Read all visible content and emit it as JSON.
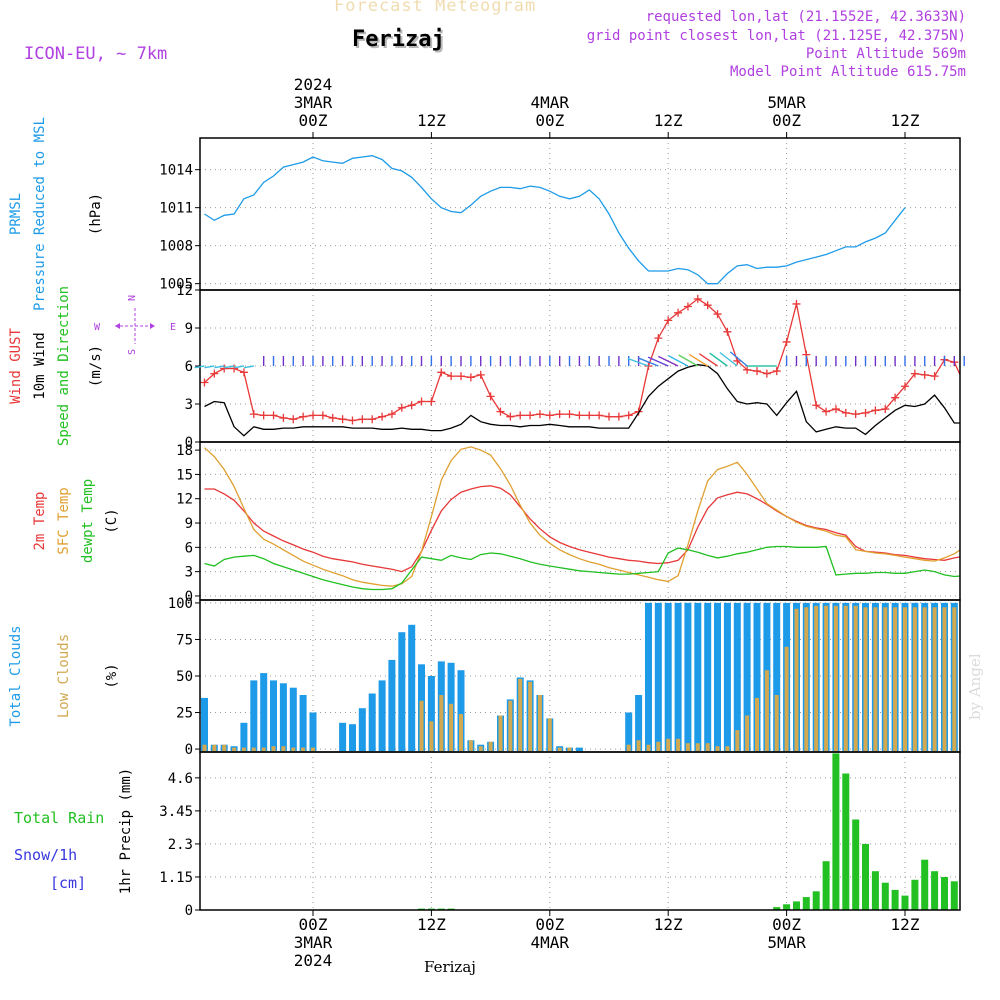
{
  "header": {
    "title": "Forecast Meteogram",
    "location": "Ferizaj",
    "model": "ICON-EU, ~ 7km",
    "requested": "requested lon,lat (21.1552E, 42.3633N)",
    "grid": "grid point closest lon,lat (21.125E, 42.375N)",
    "altitude": "Point Altitude 569m",
    "model_altitude": "Model Point Altitude 615.75m",
    "watermark": "by Angel",
    "footer_location": "Ferizaj"
  },
  "time_axis": {
    "top_labels": [
      {
        "t": 0,
        "lines": [
          "2024",
          "3MAR",
          "00Z"
        ]
      },
      {
        "t": 12,
        "lines": [
          "12Z"
        ]
      },
      {
        "t": 24,
        "lines": [
          "4MAR",
          "00Z"
        ]
      },
      {
        "t": 36,
        "lines": [
          "12Z"
        ]
      },
      {
        "t": 48,
        "lines": [
          "5MAR",
          "00Z"
        ]
      },
      {
        "t": 60,
        "lines": [
          "12Z"
        ]
      }
    ],
    "bottom_labels": [
      {
        "t": 0,
        "lines": [
          "00Z",
          "3MAR",
          "2024"
        ]
      },
      {
        "t": 12,
        "lines": [
          "12Z"
        ]
      },
      {
        "t": 24,
        "lines": [
          "00Z",
          "4MAR"
        ]
      },
      {
        "t": 36,
        "lines": [
          "12Z"
        ]
      },
      {
        "t": 48,
        "lines": [
          "00Z",
          "5MAR"
        ]
      },
      {
        "t": 60,
        "lines": [
          "12Z"
        ]
      }
    ]
  },
  "colors": {
    "pressure": "#1e9be8",
    "gust": "#e83838",
    "wind": "#000000",
    "temp2m": "#e83838",
    "sfc": "#e0a030",
    "dewpt": "#22c022",
    "total_clouds": "#1e9be8",
    "low_clouds": "#d2a850",
    "rain": "#22c022",
    "snow": "#3838e0",
    "violet": "#b040e0",
    "grid": "#9a9a9a"
  },
  "chart_data": [
    {
      "type": "line",
      "panel": "pressure",
      "title": "PRMSL Pressure Reduced to MSL",
      "ylabel_lines": [
        "PRMSL",
        "Pressure Reduced to MSL"
      ],
      "unit": "(hPa)",
      "ylim": [
        1004.5,
        1016.5
      ],
      "yticks": [
        1005,
        1008,
        1011,
        1014
      ],
      "x_start": -11,
      "x_step": 1,
      "series": [
        {
          "name": "PRMSL",
          "color": "#1e9be8",
          "values": [
            1010.5,
            1010.0,
            1010.4,
            1010.5,
            1011.7,
            1012.0,
            1013.0,
            1013.5,
            1014.2,
            1014.4,
            1014.6,
            1015.0,
            1014.7,
            1014.6,
            1014.5,
            1014.9,
            1015.0,
            1015.1,
            1014.8,
            1014.1,
            1013.9,
            1013.4,
            1012.6,
            1011.7,
            1011.0,
            1010.7,
            1010.6,
            1011.2,
            1011.9,
            1012.3,
            1012.6,
            1012.6,
            1012.5,
            1012.7,
            1012.6,
            1012.3,
            1011.9,
            1011.7,
            1011.9,
            1012.4,
            1011.7,
            1010.5,
            1009.0,
            1007.8,
            1006.8,
            1006.0,
            1006.0,
            1006.0,
            1006.2,
            1006.1,
            1005.7,
            1005.0,
            1005.0,
            1005.8,
            1006.4,
            1006.5,
            1006.2,
            1006.3,
            1006.3,
            1006.4,
            1006.7,
            1006.9,
            1007.1,
            1007.3,
            1007.6,
            1007.9,
            1007.9,
            1008.3,
            1008.6,
            1009.0,
            1010.0,
            1011.0
          ]
        }
      ]
    },
    {
      "type": "line",
      "panel": "wind",
      "title": "Wind GUST / 10m Wind Speed and Direction",
      "ylabel_lines": [
        "Wind GUST",
        "10m Wind",
        "Speed and Direction"
      ],
      "unit": "(m/s)",
      "ylim": [
        0,
        12
      ],
      "yticks": [
        0,
        3,
        6,
        9,
        12
      ],
      "compass": {
        "n": "N",
        "s": "S",
        "e": "E",
        "w": "W"
      },
      "x_start": -11,
      "x_step": 1,
      "series": [
        {
          "name": "Wind GUST",
          "color": "#e83838",
          "marker": "+",
          "values": [
            4.7,
            5.4,
            5.8,
            5.8,
            5.5,
            2.2,
            2.1,
            2.1,
            1.9,
            1.8,
            2.0,
            2.1,
            2.1,
            1.9,
            1.8,
            1.7,
            1.8,
            1.8,
            2.0,
            2.2,
            2.7,
            2.9,
            3.2,
            3.2,
            5.5,
            5.2,
            5.2,
            5.1,
            5.3,
            3.6,
            2.4,
            2.0,
            2.1,
            2.1,
            2.2,
            2.1,
            2.2,
            2.2,
            2.1,
            2.1,
            2.1,
            2.0,
            2.0,
            2.1,
            2.4,
            6.0,
            8.2,
            9.6,
            10.2,
            10.7,
            11.3,
            10.8,
            10.1,
            8.7,
            6.4,
            5.7,
            5.6,
            5.4,
            5.6,
            7.9,
            10.9,
            6.9,
            2.9,
            2.4,
            2.6,
            2.3,
            2.2,
            2.3,
            2.5,
            2.6,
            3.5,
            4.4,
            5.4,
            5.3,
            5.2,
            6.5,
            6.3,
            4.6,
            2.9
          ]
        },
        {
          "name": "10m Wind",
          "color": "#000000",
          "values": [
            2.8,
            3.2,
            3.1,
            1.2,
            0.5,
            1.2,
            1.0,
            1.0,
            1.1,
            1.1,
            1.2,
            1.2,
            1.2,
            1.2,
            1.2,
            1.1,
            1.1,
            1.1,
            1.0,
            1.0,
            1.1,
            1.0,
            1.0,
            0.9,
            0.9,
            1.1,
            1.4,
            2.1,
            1.6,
            1.4,
            1.3,
            1.3,
            1.2,
            1.3,
            1.3,
            1.4,
            1.3,
            1.2,
            1.2,
            1.2,
            1.1,
            1.1,
            1.1,
            1.1,
            2.3,
            3.6,
            4.4,
            5.0,
            5.6,
            5.9,
            6.1,
            6.0,
            5.4,
            4.2,
            3.2,
            3.0,
            3.1,
            3.0,
            2.1,
            3.1,
            4.0,
            1.6,
            0.8,
            1.0,
            1.2,
            1.1,
            1.1,
            0.6,
            1.3,
            1.9,
            2.5,
            2.9,
            2.8,
            3.0,
            3.7,
            2.7,
            1.5,
            1.5
          ]
        }
      ]
    },
    {
      "type": "line",
      "panel": "temperature",
      "title": "2m Temp / SFC Temp / dewpt Temp",
      "ylabel_lines": [
        "2m Temp",
        "SFC Temp",
        "dewpt Temp"
      ],
      "unit": "(C)",
      "ylim": [
        -0.5,
        19
      ],
      "yticks": [
        0,
        3,
        6,
        9,
        12,
        15,
        18
      ],
      "x_start": -11,
      "x_step": 1,
      "series": [
        {
          "name": "2m Temp",
          "color": "#e83838",
          "values": [
            13.2,
            13.2,
            12.6,
            11.8,
            10.5,
            9.0,
            8.0,
            7.4,
            6.8,
            6.3,
            5.8,
            5.4,
            4.9,
            4.6,
            4.4,
            4.2,
            3.9,
            3.7,
            3.5,
            3.3,
            3.0,
            3.6,
            5.5,
            8.1,
            10.5,
            11.9,
            12.8,
            13.2,
            13.5,
            13.6,
            13.3,
            12.5,
            11.0,
            9.5,
            8.3,
            7.3,
            6.6,
            6.1,
            5.7,
            5.4,
            5.1,
            4.8,
            4.6,
            4.4,
            4.3,
            4.1,
            4.0,
            4.1,
            4.4,
            5.7,
            8.5,
            10.8,
            12.1,
            12.5,
            12.8,
            12.6,
            12.0,
            11.3,
            10.5,
            9.8,
            9.2,
            8.7,
            8.4,
            8.2,
            7.8,
            7.5,
            6.1,
            5.5,
            5.4,
            5.3,
            5.1,
            5.0,
            4.8,
            4.6,
            4.5,
            4.4,
            4.7,
            4.9,
            5.2,
            5.5,
            5.8,
            6.0,
            6.3,
            6.6,
            7.0,
            7.1,
            6.6,
            6.5
          ]
        },
        {
          "name": "SFC Temp",
          "color": "#e0a030",
          "values": [
            18.3,
            17.2,
            15.6,
            13.5,
            10.8,
            8.2,
            7.0,
            6.4,
            5.7,
            5.0,
            4.3,
            3.8,
            3.3,
            2.9,
            2.5,
            2.0,
            1.7,
            1.5,
            1.3,
            1.2,
            1.5,
            2.4,
            5.5,
            9.8,
            14.3,
            16.7,
            18.1,
            18.4,
            18.0,
            17.4,
            15.7,
            13.7,
            11.2,
            9.0,
            7.5,
            6.5,
            5.7,
            5.1,
            4.6,
            4.2,
            3.9,
            3.5,
            3.2,
            2.9,
            2.6,
            2.3,
            2.0,
            1.8,
            2.5,
            6.3,
            10.5,
            14.2,
            15.6,
            16.0,
            16.5,
            15.0,
            13.2,
            11.4,
            10.6,
            9.8,
            9.1,
            8.6,
            8.3,
            8.0,
            7.5,
            7.3,
            5.7,
            5.5,
            5.3,
            5.2,
            5.0,
            4.8,
            4.6,
            4.4,
            4.3,
            4.7,
            5.2,
            6.0,
            6.5,
            6.9,
            7.2,
            7.6,
            8.0,
            8.2,
            8.0,
            7.2,
            6.3
          ]
        },
        {
          "name": "dewpt Temp",
          "color": "#22c022",
          "values": [
            4.0,
            3.7,
            4.5,
            4.8,
            4.9,
            5.0,
            4.6,
            4.0,
            3.6,
            3.2,
            2.8,
            2.4,
            2.0,
            1.7,
            1.4,
            1.1,
            0.9,
            0.8,
            0.8,
            0.9,
            1.6,
            3.2,
            4.8,
            4.6,
            4.4,
            5.0,
            4.7,
            4.5,
            5.1,
            5.3,
            5.2,
            4.9,
            4.6,
            4.2,
            3.9,
            3.7,
            3.5,
            3.3,
            3.1,
            3.0,
            2.9,
            2.8,
            2.7,
            2.7,
            2.8,
            2.9,
            3.0,
            5.3,
            5.9,
            5.7,
            5.4,
            5.0,
            4.7,
            4.9,
            5.2,
            5.4,
            5.7,
            6.0,
            6.1,
            6.1,
            6.0,
            6.0,
            6.0,
            6.1,
            2.6,
            2.7,
            2.8,
            2.8,
            2.9,
            2.9,
            2.8,
            2.8,
            3.0,
            3.2,
            3.0,
            2.6,
            2.4,
            2.5,
            2.7,
            2.9,
            3.2,
            3.6,
            4.1,
            4.2
          ]
        }
      ]
    },
    {
      "type": "bar",
      "panel": "clouds",
      "title": "Total Clouds / Low Clouds",
      "ylabel_lines": [
        "Total Clouds",
        "Low Clouds"
      ],
      "unit": "(%)",
      "ylim": [
        -2,
        102
      ],
      "yticks": [
        0,
        25,
        50,
        75,
        100
      ],
      "x_start": -11,
      "x_step": 1,
      "series": [
        {
          "name": "Total Clouds",
          "color": "#1e9be8",
          "values": [
            35,
            3,
            3,
            2,
            18,
            47,
            52,
            47,
            45,
            42,
            37,
            25,
            0,
            0,
            18,
            17,
            28,
            38,
            47,
            61,
            80,
            85,
            58,
            50,
            60,
            59,
            54,
            6,
            3,
            5,
            23,
            34,
            49,
            47,
            37,
            21,
            2,
            1,
            1,
            0,
            0,
            0,
            0,
            25,
            37,
            100,
            100,
            100,
            100,
            100,
            100,
            100,
            100,
            100,
            100,
            100,
            100,
            100,
            100,
            100,
            100,
            100,
            100,
            100,
            100,
            100,
            100,
            100,
            100,
            100,
            100,
            100,
            100,
            100,
            100,
            100,
            100,
            100,
            98,
            98,
            100,
            100,
            100,
            100,
            100,
            100,
            100,
            100
          ]
        },
        {
          "name": "Low Clouds",
          "color": "#d2a850",
          "values": [
            3,
            3,
            3,
            1,
            1,
            1,
            1,
            2,
            2,
            1,
            1,
            1,
            0,
            0,
            0,
            0,
            0,
            0,
            0,
            0,
            0,
            0,
            33,
            19,
            37,
            31,
            24,
            6,
            2,
            5,
            23,
            33,
            48,
            46,
            37,
            21,
            1,
            1,
            0,
            0,
            0,
            0,
            0,
            3,
            6,
            3,
            5,
            7,
            7,
            4,
            4,
            4,
            2,
            2,
            13,
            23,
            35,
            54,
            37,
            70,
            96,
            97,
            98,
            98,
            98,
            98,
            98,
            97,
            97,
            97,
            97,
            97,
            97,
            97,
            97,
            97,
            97,
            95,
            93,
            88,
            85,
            80,
            75,
            84,
            83,
            88,
            88,
            88
          ]
        }
      ]
    },
    {
      "type": "bar",
      "panel": "precip",
      "title": "1hr Precip (mm)",
      "ylabel_lines": [
        "1hr Precip (mm)"
      ],
      "legend_lines": [
        "Total  Rain",
        "Snow/1h",
        "[cm]"
      ],
      "unit": "(mm)",
      "ylim": [
        0,
        5.5
      ],
      "yticks": [
        0,
        1.15,
        2.3,
        3.45,
        4.6
      ],
      "ytick_labels": [
        "0",
        "1.15",
        "2.3",
        "3.45",
        "4.6"
      ],
      "x_start": -11,
      "x_step": 1,
      "series": [
        {
          "name": "Total Rain",
          "color": "#22c022",
          "values": [
            0,
            0,
            0,
            0,
            0,
            0,
            0,
            0,
            0,
            0,
            0,
            0,
            0,
            0,
            0,
            0,
            0,
            0,
            0,
            0,
            0,
            0,
            0.05,
            0.05,
            0.05,
            0.05,
            0,
            0,
            0,
            0,
            0,
            0,
            0,
            0,
            0,
            0,
            0,
            0,
            0,
            0,
            0,
            0,
            0,
            0,
            0,
            0,
            0,
            0,
            0,
            0,
            0,
            0,
            0,
            0,
            0,
            0,
            0,
            0,
            0.1,
            0.2,
            0.3,
            0.45,
            0.65,
            1.7,
            5.45,
            4.75,
            3.15,
            2.3,
            1.35,
            0.95,
            0.7,
            0.5,
            1.05,
            1.75,
            1.35,
            1.15,
            1.0,
            1.2,
            0.8,
            0.45,
            0.3,
            0.4,
            0.6,
            0.8
          ]
        }
      ]
    }
  ]
}
